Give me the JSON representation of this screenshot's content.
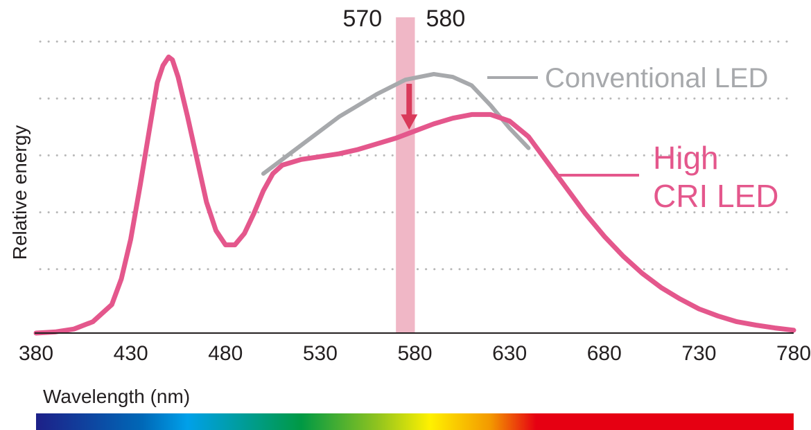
{
  "chart_data": {
    "type": "line",
    "xlabel": "Wavelength (nm)",
    "ylabel": "Relative energy",
    "xlim": [
      380,
      780
    ],
    "ylim": [
      0,
      1
    ],
    "x_ticks": [
      "380",
      "430",
      "480",
      "530",
      "580",
      "630",
      "680",
      "730",
      "780"
    ],
    "grid": "horizontal dotted",
    "highlight_band": {
      "x_start": 570,
      "x_end": 580,
      "labels": [
        "570",
        "580"
      ]
    },
    "series": [
      {
        "name": "Conventional LED",
        "color": "#a7a9ac",
        "points": [
          [
            500,
            0.56
          ],
          [
            520,
            0.66
          ],
          [
            540,
            0.76
          ],
          [
            560,
            0.84
          ],
          [
            575,
            0.89
          ],
          [
            590,
            0.91
          ],
          [
            600,
            0.9
          ],
          [
            610,
            0.87
          ],
          [
            620,
            0.8
          ],
          [
            630,
            0.72
          ],
          [
            640,
            0.65
          ]
        ]
      },
      {
        "name": "High CRI LED",
        "color": "#e4578c",
        "points": [
          [
            380,
            0.0
          ],
          [
            390,
            0.004
          ],
          [
            400,
            0.014
          ],
          [
            410,
            0.04
          ],
          [
            420,
            0.1
          ],
          [
            425,
            0.19
          ],
          [
            430,
            0.33
          ],
          [
            435,
            0.52
          ],
          [
            440,
            0.72
          ],
          [
            444,
            0.88
          ],
          [
            447,
            0.94
          ],
          [
            450,
            0.97
          ],
          [
            452,
            0.96
          ],
          [
            455,
            0.9
          ],
          [
            460,
            0.76
          ],
          [
            465,
            0.61
          ],
          [
            470,
            0.46
          ],
          [
            475,
            0.36
          ],
          [
            480,
            0.31
          ],
          [
            485,
            0.31
          ],
          [
            490,
            0.35
          ],
          [
            495,
            0.42
          ],
          [
            500,
            0.5
          ],
          [
            505,
            0.56
          ],
          [
            510,
            0.59
          ],
          [
            520,
            0.61
          ],
          [
            530,
            0.62
          ],
          [
            540,
            0.63
          ],
          [
            550,
            0.645
          ],
          [
            560,
            0.665
          ],
          [
            570,
            0.685
          ],
          [
            580,
            0.71
          ],
          [
            590,
            0.735
          ],
          [
            600,
            0.755
          ],
          [
            610,
            0.768
          ],
          [
            620,
            0.768
          ],
          [
            630,
            0.745
          ],
          [
            640,
            0.69
          ],
          [
            650,
            0.6
          ],
          [
            660,
            0.51
          ],
          [
            670,
            0.42
          ],
          [
            680,
            0.34
          ],
          [
            690,
            0.27
          ],
          [
            700,
            0.21
          ],
          [
            710,
            0.16
          ],
          [
            720,
            0.12
          ],
          [
            730,
            0.085
          ],
          [
            740,
            0.06
          ],
          [
            750,
            0.04
          ],
          [
            760,
            0.028
          ],
          [
            770,
            0.018
          ],
          [
            780,
            0.01
          ]
        ]
      }
    ],
    "legend": [
      "Conventional LED",
      "High\nCRI LED"
    ],
    "spectrum_bar": [
      "#1d2088",
      "#0068b7",
      "#00a0e9",
      "#009944",
      "#8fc31f",
      "#fff100",
      "#f39800",
      "#e60012"
    ],
    "annotation": "downward arrow at 577 nm from Conventional LED toward High CRI LED"
  }
}
